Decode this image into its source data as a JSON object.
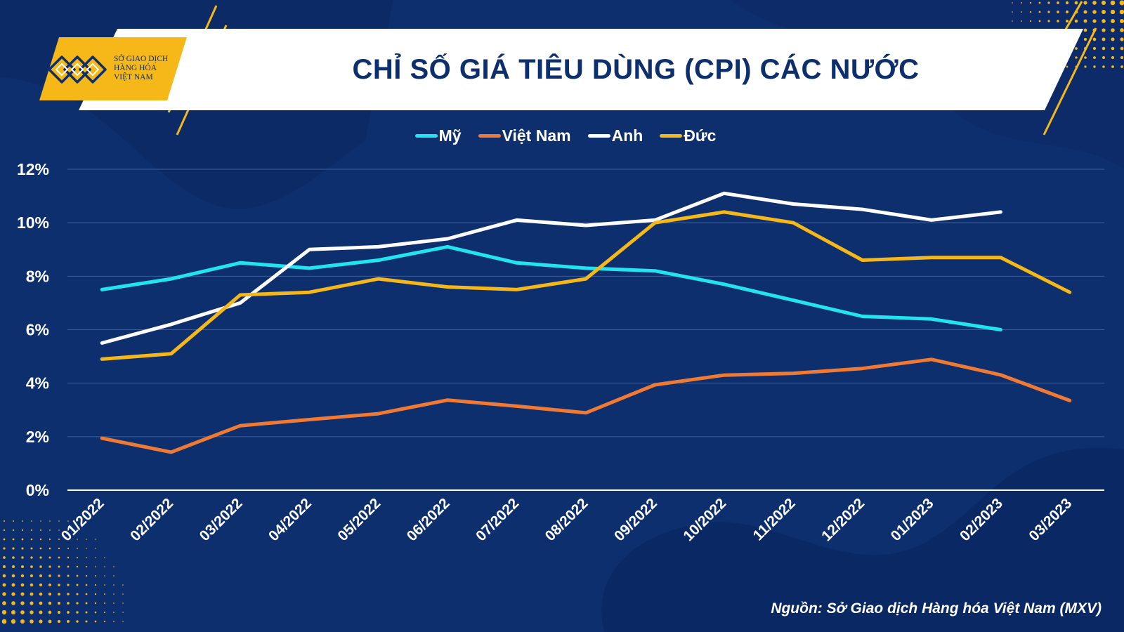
{
  "header": {
    "title": "CHỈ SỐ GIÁ TIÊU DÙNG (CPI) CÁC NƯỚC",
    "logo_lines": [
      "SỞ GIAO DỊCH",
      "HÀNG HÓA",
      "VIỆT NAM"
    ]
  },
  "footer": {
    "source": "Nguồn: Sở Giao dịch Hàng hóa Việt Nam (MXV)"
  },
  "colors": {
    "background": "#0e2f6e",
    "accent_yellow": "#f6b818",
    "gridline": "#3f5f99"
  },
  "chart_data": {
    "type": "line",
    "title": "CHỈ SỐ GIÁ TIÊU DÙNG (CPI) CÁC NƯỚC",
    "xlabel": "",
    "ylabel": "",
    "categories": [
      "01/2022",
      "02/2022",
      "03/2022",
      "04/2022",
      "05/2022",
      "06/2022",
      "07/2022",
      "08/2022",
      "09/2022",
      "10/2022",
      "11/2022",
      "12/2022",
      "01/2023",
      "02/2023",
      "03/2023"
    ],
    "ylim": [
      0,
      12
    ],
    "yticks": [
      0,
      2,
      4,
      6,
      8,
      10,
      12
    ],
    "ytick_labels": [
      "0%",
      "2%",
      "4%",
      "6%",
      "8%",
      "10%",
      "12%"
    ],
    "grid": true,
    "legend_position": "top-center",
    "series": [
      {
        "name": "Mỹ",
        "color": "#22e4f0",
        "values": [
          7.5,
          7.9,
          8.5,
          8.3,
          8.6,
          9.1,
          8.5,
          8.3,
          8.2,
          7.7,
          7.1,
          6.5,
          6.4,
          6.0,
          null
        ]
      },
      {
        "name": "Việt Nam",
        "color": "#f07a33",
        "values": [
          1.94,
          1.42,
          2.41,
          2.64,
          2.86,
          3.37,
          3.14,
          2.89,
          3.94,
          4.3,
          4.37,
          4.55,
          4.89,
          4.31,
          3.35
        ]
      },
      {
        "name": "Anh",
        "color": "#ffffff",
        "values": [
          5.5,
          6.2,
          7.0,
          9.0,
          9.1,
          9.4,
          10.1,
          9.9,
          10.1,
          11.1,
          10.7,
          10.5,
          10.1,
          10.4,
          null
        ]
      },
      {
        "name": "Đức",
        "color": "#f6b818",
        "values": [
          4.9,
          5.1,
          7.3,
          7.4,
          7.9,
          7.6,
          7.5,
          7.9,
          10.0,
          10.4,
          10.0,
          8.6,
          8.7,
          8.7,
          7.4
        ]
      }
    ]
  }
}
